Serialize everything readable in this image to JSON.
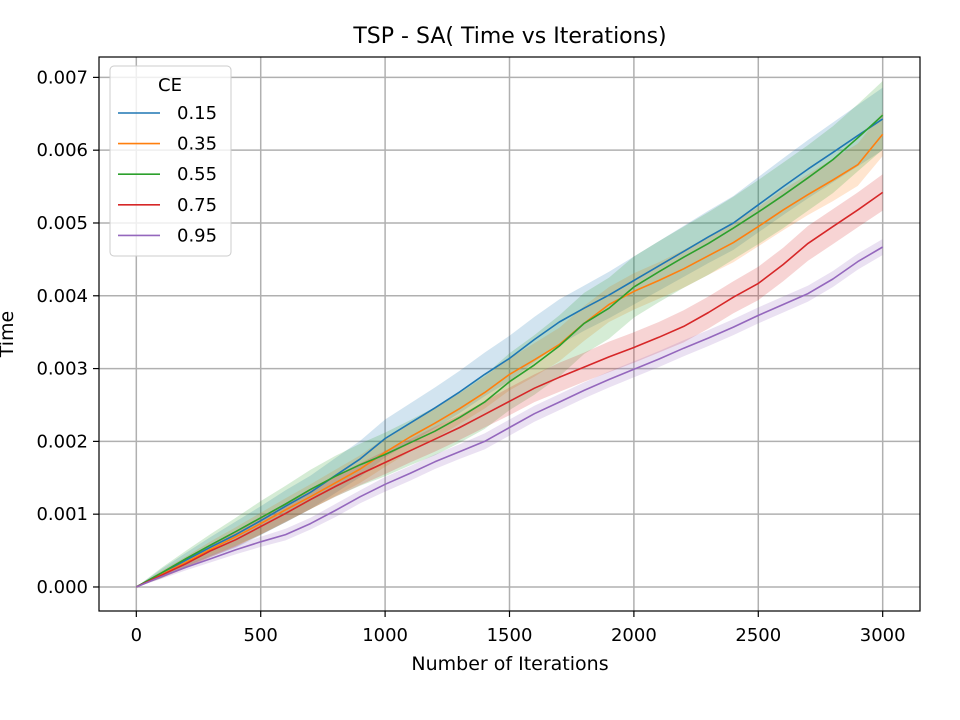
{
  "chart_data": {
    "type": "line",
    "title": "TSP - SA( Time vs Iterations)",
    "xlabel": "Number of Iterations",
    "ylabel": "Time",
    "xlim": [
      -150,
      3150
    ],
    "ylim": [
      -0.00033,
      0.00728
    ],
    "xticks": [
      0,
      500,
      1000,
      1500,
      2000,
      2500,
      3000
    ],
    "xtick_labels": [
      "0",
      "500",
      "1000",
      "1500",
      "2000",
      "2500",
      "3000"
    ],
    "yticks": [
      0.0,
      0.001,
      0.002,
      0.003,
      0.004,
      0.005,
      0.006,
      0.007
    ],
    "ytick_labels": [
      "0.000",
      "0.001",
      "0.002",
      "0.003",
      "0.004",
      "0.005",
      "0.006",
      "0.007"
    ],
    "grid": true,
    "legend": {
      "title": "CE",
      "location": "top-left"
    },
    "x": [
      0,
      100,
      200,
      300,
      400,
      500,
      600,
      700,
      800,
      900,
      1000,
      1100,
      1200,
      1300,
      1400,
      1500,
      1600,
      1700,
      1800,
      1900,
      2000,
      2100,
      2200,
      2300,
      2400,
      2500,
      2600,
      2700,
      2800,
      2900,
      3000
    ],
    "series": [
      {
        "name": "0.15",
        "color": "#1f77b4",
        "values": [
          0.0,
          0.000185,
          0.00037,
          0.00055,
          0.00072,
          0.00091,
          0.00111,
          0.0013,
          0.00153,
          0.00176,
          0.00204,
          0.00225,
          0.00246,
          0.00268,
          0.00292,
          0.00314,
          0.0034,
          0.00364,
          0.00383,
          0.00401,
          0.00421,
          0.00441,
          0.00461,
          0.00481,
          0.005,
          0.00525,
          0.0055,
          0.00574,
          0.00597,
          0.0062,
          0.00643
        ],
        "band": [
          0.0,
          6e-05,
          0.0001,
          0.00014,
          0.00018,
          0.0002,
          0.00022,
          0.00023,
          0.00024,
          0.00025,
          0.00026,
          0.00027,
          0.00028,
          0.00029,
          0.0003,
          0.00031,
          0.00031,
          0.00031,
          0.00031,
          0.00032,
          0.00033,
          0.00034,
          0.00035,
          0.00036,
          0.00037,
          0.00038,
          0.00039,
          0.0004,
          0.00041,
          0.00042,
          0.00043
        ]
      },
      {
        "name": "0.35",
        "color": "#ff7f0e",
        "values": [
          0.0,
          0.00017,
          0.00034,
          0.00052,
          0.00069,
          0.00087,
          0.00106,
          0.00124,
          0.00143,
          0.00162,
          0.00185,
          0.00206,
          0.00225,
          0.00245,
          0.00267,
          0.00292,
          0.00312,
          0.00333,
          0.00362,
          0.00388,
          0.00406,
          0.00421,
          0.00437,
          0.00455,
          0.00473,
          0.00495,
          0.00518,
          0.00539,
          0.00559,
          0.0058,
          0.00622
        ],
        "band": [
          0.0,
          5e-05,
          8e-05,
          0.00011,
          0.00013,
          0.00015,
          0.00016,
          0.00017,
          0.00018,
          0.00019,
          0.0002,
          0.0002,
          0.00021,
          0.00021,
          0.00022,
          0.00022,
          0.00023,
          0.00023,
          0.00024,
          0.00024,
          0.00025,
          0.00025,
          0.00026,
          0.00026,
          0.00027,
          0.00027,
          0.00028,
          0.00028,
          0.00029,
          0.00029,
          0.0003
        ]
      },
      {
        "name": "0.55",
        "color": "#2ca02c",
        "values": [
          0.0,
          0.00019,
          0.00039,
          0.00058,
          0.00076,
          0.00095,
          0.00114,
          0.00134,
          0.00152,
          0.00168,
          0.00182,
          0.00198,
          0.00214,
          0.00233,
          0.00254,
          0.00282,
          0.00305,
          0.00331,
          0.00362,
          0.00383,
          0.00412,
          0.00433,
          0.00453,
          0.00472,
          0.00493,
          0.00515,
          0.00538,
          0.00562,
          0.00587,
          0.00617,
          0.00648
        ],
        "band": [
          0.0,
          7e-05,
          0.00011,
          0.00015,
          0.00019,
          0.00023,
          0.00025,
          0.00027,
          0.00028,
          0.00029,
          0.0003,
          0.00031,
          0.00033,
          0.00035,
          0.00037,
          0.00039,
          0.00041,
          0.00042,
          0.00042,
          0.00042,
          0.00042,
          0.00042,
          0.00042,
          0.00043,
          0.00043,
          0.00044,
          0.00045,
          0.00045,
          0.00046,
          0.00046,
          0.00047
        ]
      },
      {
        "name": "0.75",
        "color": "#d62728",
        "values": [
          0.0,
          0.00016,
          0.00032,
          0.0005,
          0.00065,
          0.00083,
          0.00101,
          0.0012,
          0.00138,
          0.00155,
          0.00171,
          0.00187,
          0.00203,
          0.00219,
          0.00237,
          0.00255,
          0.00273,
          0.00288,
          0.00302,
          0.00316,
          0.00329,
          0.00343,
          0.00358,
          0.00377,
          0.00398,
          0.00417,
          0.00443,
          0.00472,
          0.00495,
          0.00518,
          0.00542
        ],
        "band": [
          0.0,
          4e-05,
          6e-05,
          8e-05,
          0.0001,
          0.00011,
          0.00012,
          0.00013,
          0.00014,
          0.00015,
          0.00016,
          0.00016,
          0.00017,
          0.00017,
          0.00018,
          0.00019,
          0.00019,
          0.0002,
          0.0002,
          0.00021,
          0.00021,
          0.00021,
          0.00022,
          0.00022,
          0.00022,
          0.00023,
          0.00023,
          0.00024,
          0.00024,
          0.00024,
          0.00025
        ]
      },
      {
        "name": "0.95",
        "color": "#9467bd",
        "values": [
          0.0,
          0.00014,
          0.00027,
          0.00039,
          0.00051,
          0.00062,
          0.00072,
          0.00087,
          0.00105,
          0.00124,
          0.00141,
          0.00156,
          0.00172,
          0.00186,
          0.002,
          0.00219,
          0.00238,
          0.00254,
          0.0027,
          0.00285,
          0.00299,
          0.00313,
          0.00328,
          0.00342,
          0.00357,
          0.00373,
          0.00388,
          0.00403,
          0.00423,
          0.00447,
          0.00467
        ],
        "band": [
          0.0,
          3e-05,
          4e-05,
          5e-05,
          6e-05,
          7e-05,
          8e-05,
          8e-05,
          9e-05,
          9e-05,
          0.0001,
          0.0001,
          0.0001,
          0.0001,
          0.00011,
          0.00011,
          0.00011,
          0.00011,
          0.00011,
          0.00011,
          0.00011,
          0.00011,
          0.00011,
          0.00011,
          0.00011,
          0.00011,
          0.00011,
          0.00011,
          0.00011,
          0.00011,
          0.00011
        ]
      }
    ]
  }
}
